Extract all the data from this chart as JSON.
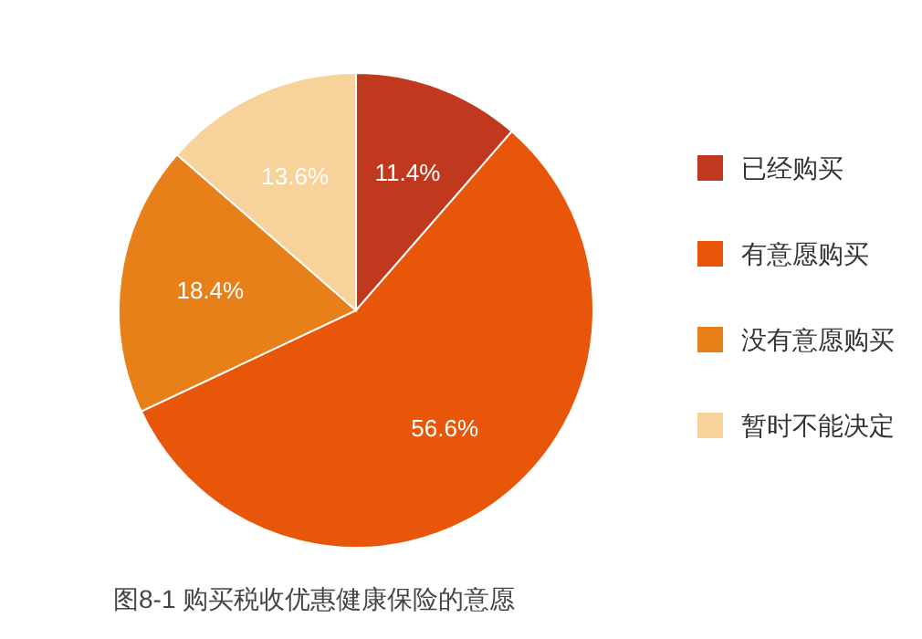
{
  "chart_data": {
    "type": "pie",
    "title": "图8-1 购买税收优惠健康保险的意愿",
    "categories": [
      "已经购买",
      "有意愿购买",
      "没有意愿购买",
      "暂时不能决定"
    ],
    "values": [
      11.4,
      56.6,
      18.4,
      13.6
    ],
    "colors": [
      "#c0391f",
      "#e8560a",
      "#e8801a",
      "#f7d29b"
    ],
    "value_labels": [
      "11.4%",
      "56.6%",
      "18.4%",
      "13.6%"
    ],
    "legend": "right"
  }
}
